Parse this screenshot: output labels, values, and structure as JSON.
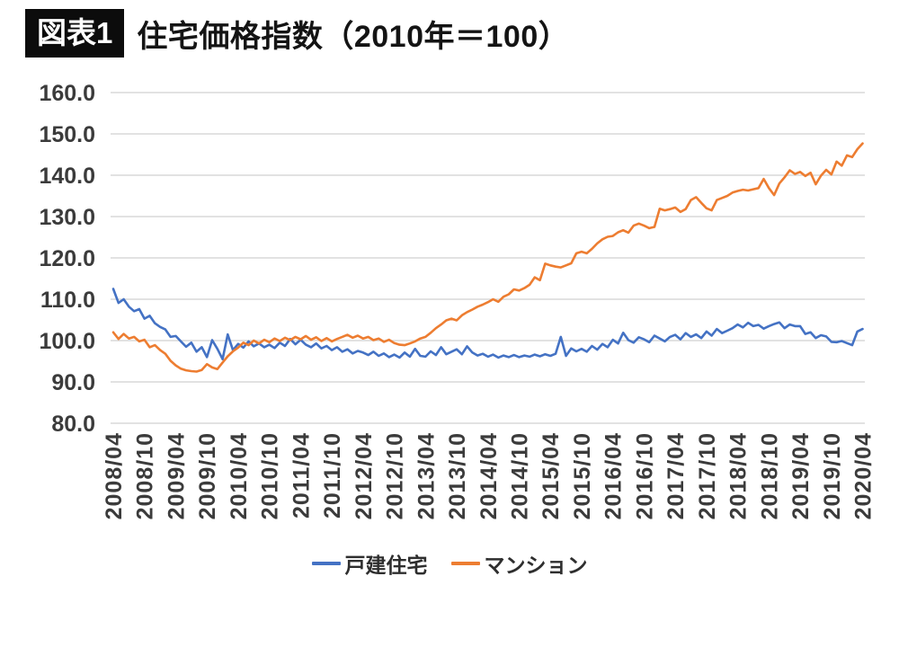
{
  "header": {
    "badge": "図表1",
    "title": "住宅価格指数（2010年＝100）"
  },
  "chart_data": {
    "type": "line",
    "title": "住宅価格指数（2010年＝100）",
    "ylim": [
      80,
      160
    ],
    "yticks": [
      160,
      150,
      140,
      130,
      120,
      110,
      100,
      90,
      80
    ],
    "ytick_labels": [
      "160.0",
      "150.0",
      "140.0",
      "130.0",
      "120.0",
      "110.0",
      "100.0",
      "90.0",
      "80.0"
    ],
    "x_tick_labels": [
      "2008/04",
      "2008/10",
      "2009/04",
      "2009/10",
      "2010/04",
      "2010/10",
      "2011/04",
      "2011/10",
      "2012/04",
      "2012/10",
      "2013/04",
      "2013/10",
      "2014/04",
      "2014/10",
      "2015/04",
      "2015/10",
      "2016/04",
      "2016/10",
      "2017/04",
      "2017/10",
      "2018/04",
      "2018/10",
      "2019/04",
      "2019/10",
      "2020/04"
    ],
    "x_tick_every_n_points": 6,
    "grid": true,
    "legend_position": "bottom",
    "colors": {
      "detached": "#4472C4",
      "mansion": "#ED7D31",
      "gridline": "#D9D9D9",
      "tick_text": "#3B3B3B"
    },
    "series": [
      {
        "name": "戸建住宅",
        "key": "detached",
        "values": [
          112.5,
          109.1,
          110.0,
          108.2,
          107.1,
          107.6,
          105.3,
          106.0,
          104.2,
          103.3,
          102.7,
          100.9,
          101.1,
          99.8,
          98.5,
          99.5,
          97.3,
          98.4,
          96.0,
          100.1,
          98.0,
          95.5,
          101.5,
          97.7,
          99.2,
          98.3,
          99.8,
          98.6,
          99.3,
          98.4,
          99.0,
          98.2,
          99.5,
          98.7,
          100.4,
          99.1,
          100.2,
          99.0,
          98.4,
          99.3,
          98.1,
          98.7,
          97.7,
          98.4,
          97.3,
          97.9,
          96.9,
          97.5,
          97.1,
          96.5,
          97.3,
          96.3,
          96.9,
          96.0,
          96.6,
          95.9,
          97.1,
          96.1,
          98.0,
          96.3,
          96.1,
          97.4,
          96.5,
          98.4,
          96.7,
          97.3,
          97.9,
          96.7,
          98.6,
          97.1,
          96.4,
          96.8,
          96.1,
          96.6,
          95.9,
          96.4,
          96.0,
          96.5,
          96.0,
          96.4,
          96.1,
          96.6,
          96.2,
          96.7,
          96.3,
          96.8,
          100.9,
          96.3,
          98.1,
          97.4,
          98.0,
          97.3,
          98.7,
          97.8,
          99.2,
          98.4,
          100.2,
          99.3,
          101.9,
          100.1,
          99.5,
          100.8,
          100.3,
          99.6,
          101.2,
          100.5,
          99.8,
          100.9,
          101.4,
          100.3,
          101.8,
          100.9,
          101.5,
          100.6,
          102.2,
          101.2,
          102.8,
          101.8,
          102.4,
          103.0,
          103.9,
          103.2,
          104.3,
          103.5,
          103.8,
          102.9,
          103.5,
          104.0,
          104.4,
          103.0,
          103.9,
          103.5,
          103.5,
          101.6,
          102.0,
          100.6,
          101.3,
          101.0,
          99.7,
          99.6,
          99.9,
          99.4,
          98.9,
          102.2,
          102.8
        ]
      },
      {
        "name": "マンション",
        "key": "mansion",
        "values": [
          102.0,
          100.4,
          101.6,
          100.5,
          100.9,
          99.8,
          100.2,
          98.4,
          98.9,
          97.7,
          96.8,
          95.1,
          94.0,
          93.2,
          92.8,
          92.6,
          92.5,
          92.9,
          94.3,
          93.5,
          93.1,
          94.7,
          96.2,
          97.4,
          98.3,
          99.5,
          98.9,
          100.0,
          99.3,
          100.2,
          99.6,
          100.5,
          99.9,
          100.7,
          100.1,
          100.9,
          100.3,
          101.1,
          100.2,
          100.8,
          99.9,
          100.6,
          99.8,
          100.4,
          100.9,
          101.4,
          100.7,
          101.2,
          100.5,
          100.9,
          100.1,
          100.5,
          99.7,
          100.2,
          99.4,
          99.0,
          98.9,
          99.3,
          99.8,
          100.5,
          100.9,
          101.9,
          103.0,
          103.9,
          104.9,
          105.3,
          104.9,
          106.1,
          106.9,
          107.5,
          108.2,
          108.7,
          109.3,
          110.0,
          109.4,
          110.6,
          111.2,
          112.4,
          112.1,
          112.7,
          113.5,
          115.3,
          114.6,
          118.6,
          118.2,
          117.9,
          117.7,
          118.2,
          118.7,
          121.1,
          121.5,
          121.1,
          122.2,
          123.5,
          124.5,
          125.1,
          125.3,
          126.2,
          126.7,
          126.1,
          127.8,
          128.3,
          127.8,
          127.2,
          127.5,
          131.9,
          131.5,
          131.8,
          132.2,
          131.1,
          131.8,
          134.0,
          134.7,
          133.3,
          132.0,
          131.5,
          134.0,
          134.5,
          135.0,
          135.8,
          136.2,
          136.5,
          136.3,
          136.6,
          136.9,
          139.1,
          136.9,
          135.2,
          138.0,
          139.5,
          141.2,
          140.3,
          140.8,
          139.8,
          140.6,
          137.8,
          139.9,
          141.3,
          140.2,
          143.3,
          142.3,
          144.8,
          144.4,
          146.3,
          147.7
        ]
      }
    ]
  }
}
